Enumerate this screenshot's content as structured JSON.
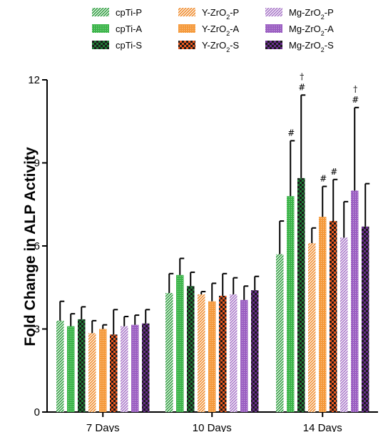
{
  "chart_data": {
    "type": "bar",
    "title": "",
    "xlabel": "",
    "ylabel": "Fold Change in ALP Activity",
    "ylim": [
      0,
      12
    ],
    "yticks": [
      "0",
      "3",
      "6",
      "9",
      "12"
    ],
    "categories": [
      "7 Days",
      "10 Days",
      "14 Days"
    ],
    "legend_position": "top",
    "series": [
      {
        "name": "cpTi-P",
        "label_html": "cpTi-P",
        "color": "#2e9e3f",
        "pattern": "diag",
        "values": [
          3.3,
          4.3,
          5.7
        ],
        "errors": [
          0.7,
          0.7,
          1.2
        ],
        "marks": [
          "",
          "",
          ""
        ]
      },
      {
        "name": "cpTi-A",
        "label_html": "cpTi-A",
        "color": "#3cb54a",
        "pattern": "dots",
        "values": [
          3.1,
          4.95,
          7.8
        ],
        "errors": [
          0.45,
          0.6,
          2.0
        ],
        "marks": [
          "",
          "",
          "#"
        ]
      },
      {
        "name": "cpTi-S",
        "label_html": "cpTi-S",
        "color": "#1f7a35",
        "pattern": "checker",
        "values": [
          3.35,
          4.55,
          8.45
        ],
        "errors": [
          0.45,
          0.5,
          3.0
        ],
        "marks": [
          "",
          "",
          "#†"
        ]
      },
      {
        "name": "Y-ZrO2-P",
        "label_html": "Y-ZrO<tspan baseline-shift=\"sub\" font-size=\"9\">2</tspan>-P",
        "color": "#f08a2a",
        "pattern": "diag",
        "values": [
          2.85,
          4.25,
          6.1
        ],
        "errors": [
          0.45,
          0.1,
          0.55
        ],
        "marks": [
          "",
          "",
          ""
        ]
      },
      {
        "name": "Y-ZrO2-A",
        "label_html": "Y-ZrO<tspan baseline-shift=\"sub\" font-size=\"9\">2</tspan>-A",
        "color": "#f59a3c",
        "pattern": "dots",
        "values": [
          3.0,
          4.0,
          7.05
        ],
        "errors": [
          0.15,
          0.65,
          1.1
        ],
        "marks": [
          "",
          "",
          "#"
        ]
      },
      {
        "name": "Y-ZrO2-S",
        "label_html": "Y-ZrO<tspan baseline-shift=\"sub\" font-size=\"9\">2</tspan>-S",
        "color": "#ee5a1f",
        "pattern": "checker",
        "values": [
          2.8,
          4.2,
          6.9
        ],
        "errors": [
          0.9,
          0.8,
          1.5
        ],
        "marks": [
          "",
          "",
          "#"
        ]
      },
      {
        "name": "Mg-ZrO2-P",
        "label_html": "Mg-ZrO<tspan baseline-shift=\"sub\" font-size=\"9\">2</tspan>-P",
        "color": "#a776c8",
        "pattern": "diag",
        "values": [
          3.1,
          4.25,
          6.3
        ],
        "errors": [
          0.35,
          0.6,
          1.3
        ],
        "marks": [
          "",
          "",
          ""
        ]
      },
      {
        "name": "Mg-ZrO2-A",
        "label_html": "Mg-ZrO<tspan baseline-shift=\"sub\" font-size=\"9\">2</tspan>-A",
        "color": "#9b5fc2",
        "pattern": "dots",
        "values": [
          3.15,
          4.05,
          8.0
        ],
        "errors": [
          0.35,
          0.5,
          3.0
        ],
        "marks": [
          "",
          "",
          "#†"
        ]
      },
      {
        "name": "Mg-ZrO2-S",
        "label_html": "Mg-ZrO<tspan baseline-shift=\"sub\" font-size=\"9\">2</tspan>-S",
        "color": "#6a2d8f",
        "pattern": "checker",
        "values": [
          3.2,
          4.4,
          6.7
        ],
        "errors": [
          0.5,
          0.5,
          1.55
        ],
        "marks": [
          "",
          "",
          ""
        ]
      }
    ]
  }
}
